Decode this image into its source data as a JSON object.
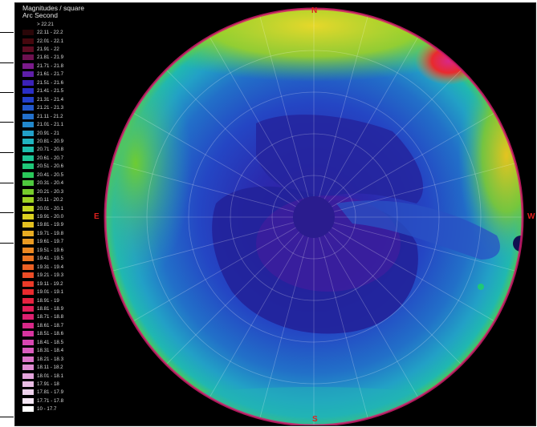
{
  "legend": {
    "title_line1": "Magnitudes / square",
    "title_line2": "Arc Second",
    "items": [
      {
        "label": "> 22.21",
        "color": "#000000"
      },
      {
        "label": "22.11 - 22.2",
        "color": "#2a0608"
      },
      {
        "label": "22.01 - 22.1",
        "color": "#46080e"
      },
      {
        "label": "21.91 - 22",
        "color": "#5e0c22"
      },
      {
        "label": "21.81 - 21.9",
        "color": "#6e1150"
      },
      {
        "label": "21.71 - 21.8",
        "color": "#7a1a8a"
      },
      {
        "label": "21.61 - 21.7",
        "color": "#5e1ea8"
      },
      {
        "label": "21.51 - 21.6",
        "color": "#3b22b8"
      },
      {
        "label": "21.41 - 21.5",
        "color": "#2a2ec6"
      },
      {
        "label": "21.31 - 21.4",
        "color": "#2440cc"
      },
      {
        "label": "21.21 - 21.3",
        "color": "#2258cc"
      },
      {
        "label": "21.11 - 21.2",
        "color": "#2270cc"
      },
      {
        "label": "21.01 - 21.1",
        "color": "#2288cc"
      },
      {
        "label": "20.91 - 21",
        "color": "#22a0c8"
      },
      {
        "label": "20.81 - 20.9",
        "color": "#20b4c0"
      },
      {
        "label": "20.71 - 20.8",
        "color": "#1ebeac"
      },
      {
        "label": "20.61 - 20.7",
        "color": "#1cc494"
      },
      {
        "label": "20.51 - 20.6",
        "color": "#1ec878"
      },
      {
        "label": "20.41 - 20.5",
        "color": "#2ac85a"
      },
      {
        "label": "20.31 - 20.4",
        "color": "#4ec83e"
      },
      {
        "label": "20.21 - 20.3",
        "color": "#76cc2c"
      },
      {
        "label": "20.11 - 20.2",
        "color": "#9ed224"
      },
      {
        "label": "20.01 - 20.1",
        "color": "#c4d620"
      },
      {
        "label": "19.91 - 20.0",
        "color": "#dcd020"
      },
      {
        "label": "19.81 - 19.9",
        "color": "#e4c020"
      },
      {
        "label": "19.71 - 19.8",
        "color": "#e8ac22"
      },
      {
        "label": "19.61 - 19.7",
        "color": "#ea9a22"
      },
      {
        "label": "19.51 - 19.6",
        "color": "#ec8822"
      },
      {
        "label": "19.41 - 19.5",
        "color": "#ec7422"
      },
      {
        "label": "19.31 - 19.4",
        "color": "#ec6024"
      },
      {
        "label": "19.21 - 19.3",
        "color": "#ec4c26"
      },
      {
        "label": "19.11 - 19.2",
        "color": "#ea3a28"
      },
      {
        "label": "19.01 - 19.1",
        "color": "#e82a2e"
      },
      {
        "label": "18.91 - 19",
        "color": "#e42240"
      },
      {
        "label": "18.81 - 18.9",
        "color": "#e01e58"
      },
      {
        "label": "18.71 - 18.8",
        "color": "#dc2070"
      },
      {
        "label": "18.61 - 18.7",
        "color": "#d82888"
      },
      {
        "label": "18.51 - 18.6",
        "color": "#d834a0"
      },
      {
        "label": "18.41 - 18.5",
        "color": "#d846b2"
      },
      {
        "label": "18.31 - 18.4",
        "color": "#da5cbe"
      },
      {
        "label": "18.21 - 18.3",
        "color": "#dc74c8"
      },
      {
        "label": "18.11 - 18.2",
        "color": "#e08cd2"
      },
      {
        "label": "18.01 - 18.1",
        "color": "#e4a4dc"
      },
      {
        "label": "17.91 - 18",
        "color": "#e8bce4"
      },
      {
        "label": "17.81 - 17.9",
        "color": "#eed2ec"
      },
      {
        "label": "17.71 - 17.8",
        "color": "#f4e6f4"
      },
      {
        "label": "10 - 17.7",
        "color": "#ffffff"
      }
    ]
  },
  "compass": {
    "north": "N",
    "south": "S",
    "east": "E",
    "west": "W"
  },
  "colors": {
    "deep_sky": "#23239c",
    "mid_sky": "#2a45c8",
    "horizon_cyan": "#22a8c8",
    "horizon_green": "#6ecc32",
    "horizon_yellow": "#e4d62a",
    "zenith_purple": "#5a1e9e",
    "compass_red": "#e0201e"
  }
}
